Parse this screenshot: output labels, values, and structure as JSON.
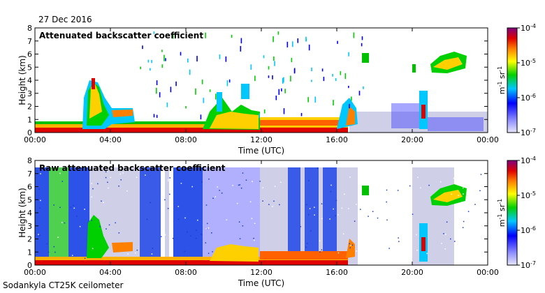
{
  "date": "27 Dec 2016",
  "footer": "Sodankyla CT25K ceilometer",
  "chart_data": [
    {
      "type": "heatmap",
      "title": "Attenuated backscatter coefficient",
      "xlabel": "Time (UTC)",
      "ylabel": "Height (km)",
      "xlim": [
        0,
        24
      ],
      "ylim": [
        0,
        8
      ],
      "xticks": [
        "00:00",
        "04:00",
        "08:00",
        "12:00",
        "16:00",
        "20:00",
        "00:00"
      ],
      "yticks": [
        "0",
        "1",
        "2",
        "3",
        "4",
        "5",
        "6",
        "7",
        "8"
      ],
      "colorbar": {
        "label": "m-1 sr-1",
        "scale": "log",
        "ticks": [
          "10-7",
          "10-6",
          "10-5",
          "10-4"
        ]
      }
    },
    {
      "type": "heatmap",
      "title": "Raw attenuated backscatter coefficient",
      "xlabel": "Time (UTC)",
      "ylabel": "Height (km)",
      "xlim": [
        0,
        24
      ],
      "ylim": [
        0,
        8
      ],
      "xticks": [
        "00:00",
        "04:00",
        "08:00",
        "12:00",
        "16:00",
        "20:00",
        "00:00"
      ],
      "yticks": [
        "0",
        "1",
        "2",
        "3",
        "4",
        "5",
        "6",
        "7",
        "8"
      ],
      "colorbar": {
        "label": "m-1 sr-1",
        "scale": "log",
        "ticks": [
          "10-7",
          "10-6",
          "10-5",
          "10-4"
        ]
      }
    }
  ]
}
